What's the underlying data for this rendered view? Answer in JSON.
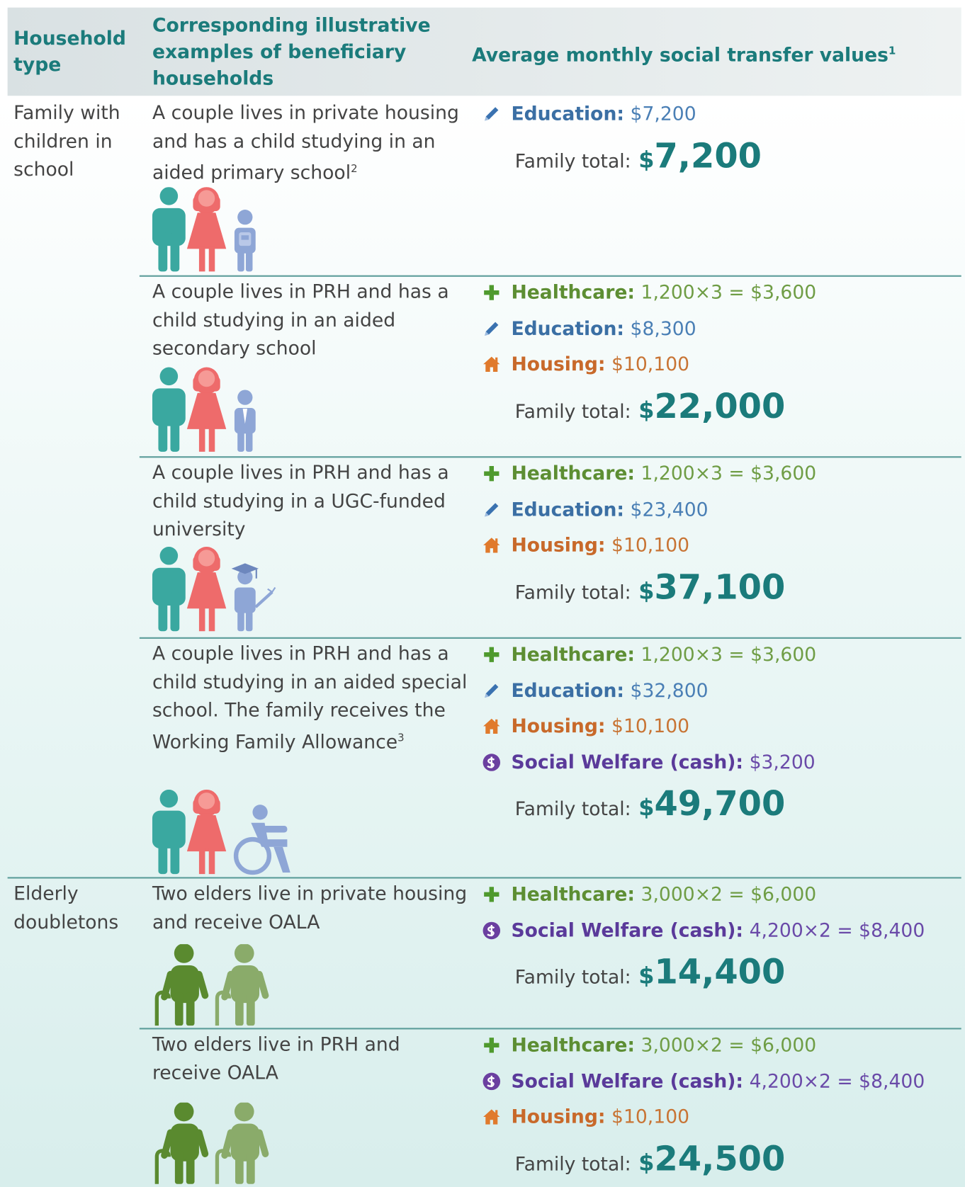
{
  "header": {
    "household_type": "Household type",
    "examples": "Corresponding illustrative examples of beneficiary households",
    "values": "Average monthly social transfer values",
    "values_note": "1"
  },
  "groups": [
    {
      "household_type": "Family with children in school",
      "examples": [
        {
          "description": "A couple lives in private housing and has a child studying in an aided primary school",
          "note": "2",
          "transfers": [
            {
              "label": "Education:",
              "amount": "$7,200"
            }
          ],
          "total_label": "Family total:",
          "total": "$7,200"
        },
        {
          "description": "A couple lives in PRH and has a child studying in an aided secondary school",
          "transfers": [
            {
              "label": "Healthcare:",
              "amount": "1,200×3 = $3,600"
            },
            {
              "label": "Education:",
              "amount": "$8,300"
            },
            {
              "label": "Housing:",
              "amount": "$10,100"
            }
          ],
          "total_label": "Family total:",
          "total": "$22,000"
        },
        {
          "description": "A couple lives in PRH and has a child studying in a UGC-funded university",
          "transfers": [
            {
              "label": "Healthcare:",
              "amount": "1,200×3 = $3,600"
            },
            {
              "label": "Education:",
              "amount": "$23,400"
            },
            {
              "label": "Housing:",
              "amount": "$10,100"
            }
          ],
          "total_label": "Family total:",
          "total": "$37,100"
        },
        {
          "description": "A couple lives in PRH and has a child studying in an aided special school.  The family receives the Working Family Allowance",
          "note": "3",
          "transfers": [
            {
              "label": "Healthcare:",
              "amount": "1,200×3 = $3,600"
            },
            {
              "label": "Education:",
              "amount": "$32,800"
            },
            {
              "label": "Housing:",
              "amount": "$10,100"
            },
            {
              "label": "Social Welfare (cash):",
              "amount": "$3,200"
            }
          ],
          "total_label": "Family total:",
          "total": "$49,700"
        }
      ]
    },
    {
      "household_type": "Elderly doubletons",
      "examples": [
        {
          "description": "Two elders live in private housing and receive OALA",
          "transfers": [
            {
              "label": "Healthcare:",
              "amount": "3,000×2 = $6,000"
            },
            {
              "label": "Social Welfare (cash):",
              "amount": "4,200×2 = $8,400"
            }
          ],
          "total_label": "Family total:",
          "total": "$14,400"
        },
        {
          "description": "Two elders live in PRH and receive OALA",
          "transfers": [
            {
              "label": "Healthcare:",
              "amount": "3,000×2 = $6,000"
            },
            {
              "label": "Social Welfare (cash):",
              "amount": "4,200×2 = $8,400"
            },
            {
              "label": "Housing:",
              "amount": "$10,100"
            }
          ],
          "total_label": "Family total:",
          "total": "$24,500"
        }
      ]
    }
  ]
}
